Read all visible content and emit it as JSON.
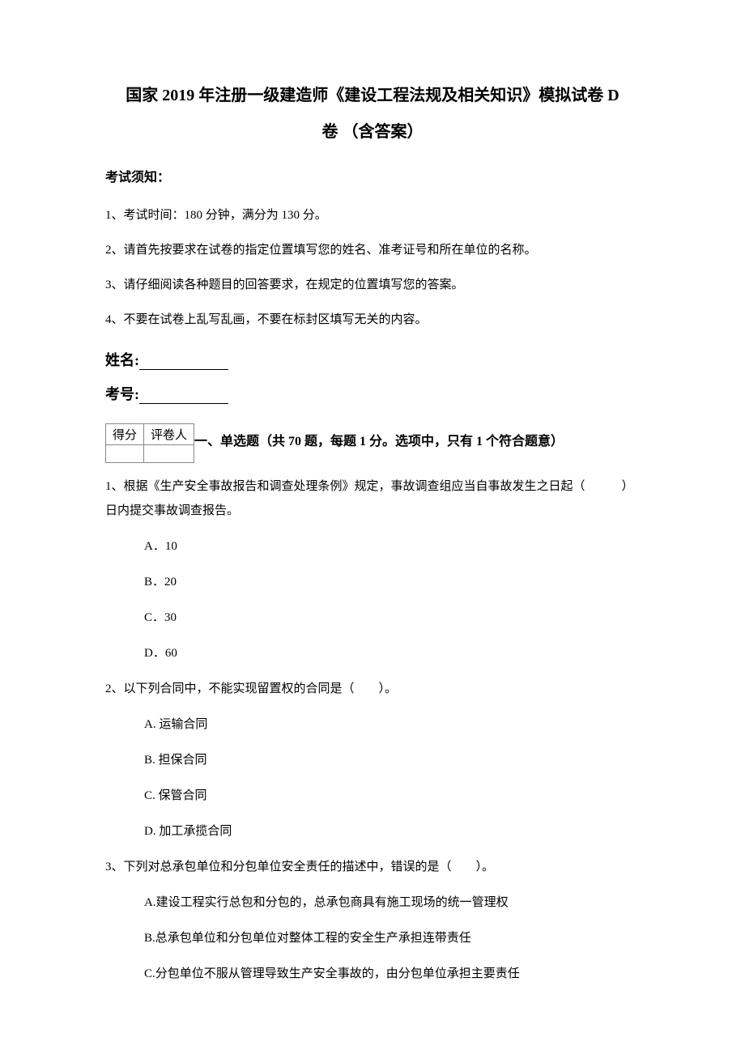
{
  "title_line1": "国家 2019 年注册一级建造师《建设工程法规及相关知识》模拟试卷 D",
  "title_line2": "卷 （含答案）",
  "notice_label": "考试须知：",
  "instructions": [
    "1、考试时间：180 分钟，满分为 130 分。",
    "2、请首先按要求在试卷的指定位置填写您的姓名、准考证号和所在单位的名称。",
    "3、请仔细阅读各种题目的回答要求，在规定的位置填写您的答案。",
    "4、不要在试卷上乱写乱画，不要在标封区填写无关的内容。"
  ],
  "name_label": "姓名:",
  "exam_number_label": "考号:",
  "score_table": {
    "header_score": "得分",
    "header_grader": "评卷人"
  },
  "section_heading": "一、单选题（共 70 题，每题 1 分。选项中，只有 1 个符合题意）",
  "questions": [
    {
      "text": "1、根据《生产安全事故报告和调查处理条例》规定，事故调查组应当自事故发生之日起（　　　）日内提交事故调查报告。",
      "options": [
        "A．10",
        "B．20",
        "C．30",
        "D．60"
      ]
    },
    {
      "text": "2、以下列合同中，不能实现留置权的合同是（　　）。",
      "options": [
        "A. 运输合同",
        "B. 担保合同",
        "C. 保管合同",
        "D. 加工承揽合同"
      ]
    },
    {
      "text": "3、下列对总承包单位和分包单位安全责任的描述中，错误的是（　　）。",
      "options": [
        "A.建设工程实行总包和分包的，总承包商具有施工现场的统一管理权",
        "B.总承包单位和分包单位对整体工程的安全生产承担连带责任",
        "C.分包单位不服从管理导致生产安全事故的，由分包单位承担主要责任"
      ]
    }
  ],
  "colors": {
    "background": "#ffffff",
    "text": "#000000",
    "table_border": "#888888"
  },
  "fonts": {
    "body_family": "SimSun",
    "title_size_pt": 20,
    "body_size_pt": 15,
    "label_size_pt": 16
  }
}
